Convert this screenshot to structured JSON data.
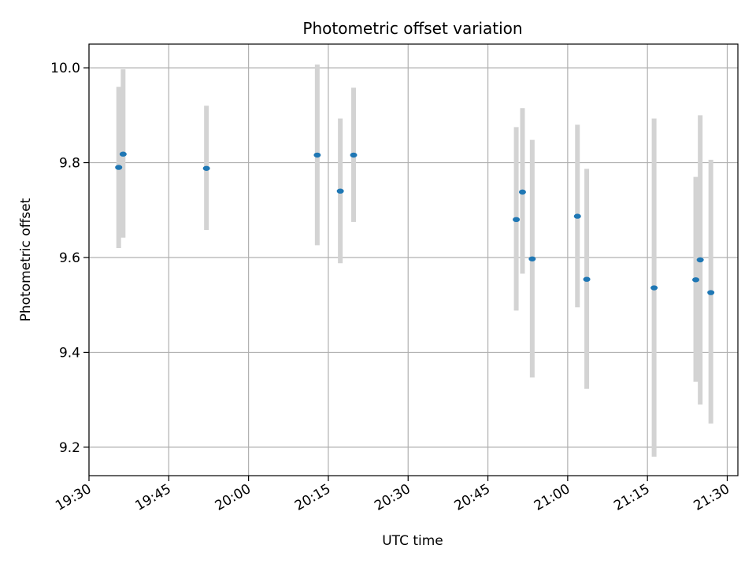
{
  "chart_data": {
    "type": "scatter",
    "title": "Photometric offset variation",
    "xlabel": "UTC time",
    "ylabel": "Photometric offset",
    "x_ticks": [
      "19:30",
      "19:45",
      "20:00",
      "20:15",
      "20:30",
      "20:45",
      "21:00",
      "21:15",
      "21:30"
    ],
    "y_ticks": [
      "9.2",
      "9.4",
      "9.6",
      "9.8",
      "10.0"
    ],
    "xlim": [
      "19:30",
      "21:32"
    ],
    "ylim": [
      9.14,
      10.05
    ],
    "grid": true,
    "marker_color": "#1f77b4",
    "errorbar_color": "#d3d3d3",
    "points": [
      {
        "x": "19:35:35",
        "y": 9.79,
        "lo": 9.62,
        "hi": 9.96
      },
      {
        "x": "19:36:25",
        "y": 9.818,
        "lo": 9.642,
        "hi": 9.997
      },
      {
        "x": "19:52:05",
        "y": 9.788,
        "lo": 9.658,
        "hi": 9.92
      },
      {
        "x": "20:12:55",
        "y": 9.816,
        "lo": 9.626,
        "hi": 10.007
      },
      {
        "x": "20:17:15",
        "y": 9.74,
        "lo": 9.588,
        "hi": 9.893
      },
      {
        "x": "20:19:45",
        "y": 9.816,
        "lo": 9.675,
        "hi": 9.958
      },
      {
        "x": "20:50:20",
        "y": 9.68,
        "lo": 9.488,
        "hi": 9.875
      },
      {
        "x": "20:51:30",
        "y": 9.738,
        "lo": 9.566,
        "hi": 9.915
      },
      {
        "x": "20:53:20",
        "y": 9.597,
        "lo": 9.347,
        "hi": 9.848
      },
      {
        "x": "21:01:50",
        "y": 9.687,
        "lo": 9.495,
        "hi": 9.88
      },
      {
        "x": "21:03:35",
        "y": 9.554,
        "lo": 9.323,
        "hi": 9.787
      },
      {
        "x": "21:16:15",
        "y": 9.536,
        "lo": 9.18,
        "hi": 9.893
      },
      {
        "x": "21:24:05",
        "y": 9.553,
        "lo": 9.338,
        "hi": 9.77
      },
      {
        "x": "21:24:55",
        "y": 9.595,
        "lo": 9.29,
        "hi": 9.9
      },
      {
        "x": "21:26:55",
        "y": 9.526,
        "lo": 9.25,
        "hi": 9.806
      }
    ]
  }
}
